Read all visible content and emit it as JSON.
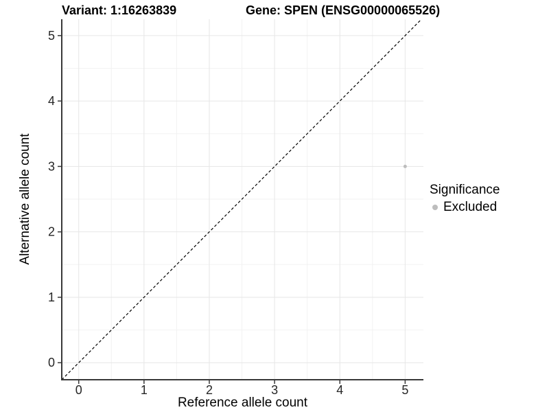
{
  "header": {
    "title_left": "Variant: 1:16263839",
    "title_right": "Gene: SPEN (ENSG00000065526)"
  },
  "chart_data": {
    "type": "scatter",
    "title_left": "Variant: 1:16263839",
    "title_right": "Gene: SPEN (ENSG00000065526)",
    "xlabel": "Reference allele count",
    "ylabel": "Alternative allele count",
    "xlim": [
      -0.26,
      5.28
    ],
    "ylim": [
      -0.26,
      5.25
    ],
    "xticks": [
      0,
      1,
      2,
      3,
      4,
      5
    ],
    "yticks": [
      0,
      1,
      2,
      3,
      4,
      5
    ],
    "grid": {
      "major": true,
      "minor": true,
      "minor_interval": 0.5,
      "major_color": "#e6e6e6",
      "minor_color": "#f2f2f2"
    },
    "reference_line": {
      "type": "identity",
      "slope": 1,
      "intercept": 0,
      "style": "dashed",
      "color": "#000000"
    },
    "series": [
      {
        "name": "Excluded",
        "color": "#bdbdbd",
        "points": [
          {
            "x": 5,
            "y": 3
          }
        ]
      }
    ],
    "legend": {
      "title": "Significance",
      "position": "right",
      "items": [
        {
          "label": "Excluded",
          "color": "#bdbdbd"
        }
      ]
    }
  }
}
